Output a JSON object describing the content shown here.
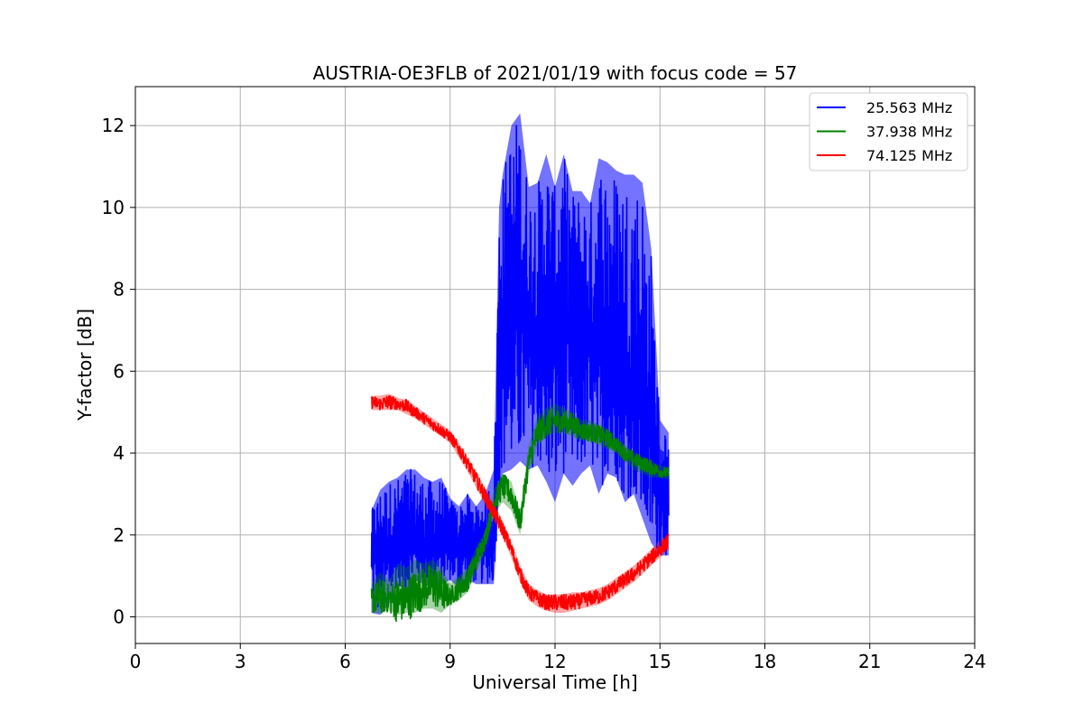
{
  "chart_data": {
    "type": "line",
    "title": "AUSTRIA-OE3FLB of 2021/01/19 with focus code = 57",
    "xlabel": "Universal Time [h]",
    "ylabel": "Y-factor [dB]",
    "xlim": [
      0,
      24
    ],
    "ylim": [
      -0.65,
      12.95
    ],
    "xticks": [
      0,
      3,
      6,
      9,
      12,
      15,
      18,
      21,
      24
    ],
    "yticks": [
      0,
      2,
      4,
      6,
      8,
      10,
      12
    ],
    "grid": true,
    "legend_position": "top-right",
    "series": [
      {
        "name": "25.563 MHz",
        "color": "#0000ff",
        "x": [
          6.75,
          7.0,
          7.25,
          7.5,
          7.75,
          8.0,
          8.25,
          8.5,
          8.75,
          9.0,
          9.25,
          9.5,
          9.75,
          10.0,
          10.25,
          10.4,
          10.5,
          10.75,
          11.0,
          11.25,
          11.5,
          11.75,
          12.0,
          12.25,
          12.5,
          12.75,
          13.0,
          13.25,
          13.5,
          13.75,
          14.0,
          14.25,
          14.5,
          14.75,
          15.0,
          15.25
        ],
        "y": [
          1.8,
          1.7,
          1.8,
          1.7,
          1.8,
          1.9,
          1.7,
          1.8,
          1.9,
          1.8,
          1.7,
          1.9,
          1.8,
          1.9,
          1.9,
          6.5,
          7.5,
          7.2,
          7.4,
          7.0,
          7.3,
          7.0,
          7.2,
          6.9,
          7.0,
          6.8,
          6.7,
          6.6,
          6.4,
          6.2,
          6.0,
          5.6,
          5.0,
          4.2,
          3.4,
          2.5
        ],
        "y_min": [
          0.1,
          0.05,
          0.3,
          0.8,
          0.6,
          0.9,
          0.8,
          0.7,
          0.8,
          0.9,
          0.7,
          0.9,
          0.8,
          0.8,
          0.8,
          3.0,
          3.5,
          3.6,
          3.8,
          3.6,
          3.7,
          3.3,
          2.8,
          3.5,
          3.2,
          3.5,
          3.7,
          3.0,
          3.5,
          3.4,
          2.8,
          3.0,
          2.4,
          1.8,
          1.5,
          1.5
        ],
        "y_max": [
          2.6,
          3.1,
          3.3,
          3.4,
          3.6,
          3.6,
          3.4,
          3.3,
          3.4,
          2.9,
          2.7,
          3.0,
          2.7,
          3.0,
          3.6,
          10.0,
          10.8,
          12.0,
          12.3,
          10.5,
          10.6,
          11.3,
          10.5,
          11.3,
          10.4,
          10.4,
          10.1,
          11.2,
          11.1,
          10.9,
          10.8,
          10.8,
          10.6,
          9.0,
          4.8,
          4.5
        ]
      },
      {
        "name": "37.938 MHz",
        "color": "#008000",
        "x": [
          6.75,
          7.0,
          7.25,
          7.5,
          7.75,
          8.0,
          8.25,
          8.5,
          8.75,
          9.0,
          9.25,
          9.5,
          9.75,
          10.0,
          10.25,
          10.5,
          10.75,
          11.0,
          11.25,
          11.5,
          11.75,
          12.0,
          12.25,
          12.5,
          12.75,
          13.0,
          13.25,
          13.5,
          13.75,
          14.0,
          14.25,
          14.5,
          14.75,
          15.0,
          15.25
        ],
        "y": [
          0.4,
          0.5,
          0.45,
          0.4,
          0.4,
          0.6,
          0.7,
          0.8,
          0.6,
          0.5,
          0.7,
          0.9,
          1.4,
          1.9,
          2.8,
          3.2,
          3.0,
          2.3,
          3.8,
          4.5,
          4.7,
          4.8,
          4.75,
          4.7,
          4.55,
          4.5,
          4.45,
          4.35,
          4.2,
          4.0,
          3.85,
          3.75,
          3.65,
          3.55,
          3.5
        ],
        "y_min": [
          0.1,
          0.1,
          0.15,
          0.05,
          0.1,
          0.1,
          0.2,
          0.2,
          0.1,
          0.3,
          0.4,
          0.6,
          1.1,
          1.6,
          2.5,
          2.8,
          2.6,
          2.0,
          3.5,
          4.2,
          4.4,
          4.5,
          4.5,
          4.4,
          4.3,
          4.3,
          4.2,
          4.1,
          4.0,
          3.8,
          3.6,
          3.5,
          3.4,
          3.4,
          3.35
        ],
        "y_max": [
          0.8,
          1.1,
          0.9,
          1.3,
          1.2,
          1.4,
          1.3,
          1.4,
          1.2,
          0.8,
          1.0,
          1.2,
          1.7,
          2.1,
          3.1,
          3.5,
          3.3,
          2.6,
          4.2,
          4.9,
          5.1,
          5.2,
          5.1,
          5.0,
          4.8,
          4.8,
          4.7,
          4.6,
          4.4,
          4.2,
          4.0,
          3.9,
          3.8,
          3.7,
          3.65
        ]
      },
      {
        "name": "74.125 MHz",
        "color": "#ff0000",
        "x": [
          6.75,
          7.0,
          7.25,
          7.5,
          7.75,
          8.0,
          8.25,
          8.5,
          8.75,
          9.0,
          9.25,
          9.5,
          9.75,
          10.0,
          10.25,
          10.5,
          10.75,
          11.0,
          11.25,
          11.5,
          11.75,
          12.0,
          12.25,
          12.5,
          12.75,
          13.0,
          13.25,
          13.5,
          13.75,
          14.0,
          14.25,
          14.5,
          14.75,
          15.0,
          15.25
        ],
        "y": [
          5.25,
          5.2,
          5.25,
          5.2,
          5.15,
          5.0,
          4.85,
          4.7,
          4.55,
          4.4,
          4.1,
          3.75,
          3.35,
          2.95,
          2.55,
          2.15,
          1.65,
          1.05,
          0.6,
          0.45,
          0.35,
          0.35,
          0.35,
          0.35,
          0.4,
          0.45,
          0.5,
          0.6,
          0.75,
          0.9,
          1.05,
          1.25,
          1.45,
          1.65,
          1.85
        ],
        "y_min": [
          5.05,
          5.05,
          5.05,
          5.05,
          4.95,
          4.85,
          4.7,
          4.55,
          4.4,
          4.25,
          3.9,
          3.55,
          3.15,
          2.75,
          2.35,
          1.95,
          1.45,
          0.85,
          0.4,
          0.25,
          0.15,
          0.1,
          0.1,
          0.15,
          0.2,
          0.25,
          0.3,
          0.4,
          0.55,
          0.7,
          0.85,
          1.05,
          1.25,
          1.45,
          1.65
        ],
        "y_max": [
          5.4,
          5.4,
          5.45,
          5.35,
          5.3,
          5.15,
          5.0,
          4.85,
          4.7,
          4.55,
          4.25,
          3.9,
          3.55,
          3.15,
          2.75,
          2.35,
          1.85,
          1.25,
          0.8,
          0.65,
          0.55,
          0.55,
          0.55,
          0.6,
          0.6,
          0.65,
          0.7,
          0.8,
          0.95,
          1.1,
          1.25,
          1.45,
          1.65,
          1.85,
          2.05
        ]
      }
    ]
  }
}
